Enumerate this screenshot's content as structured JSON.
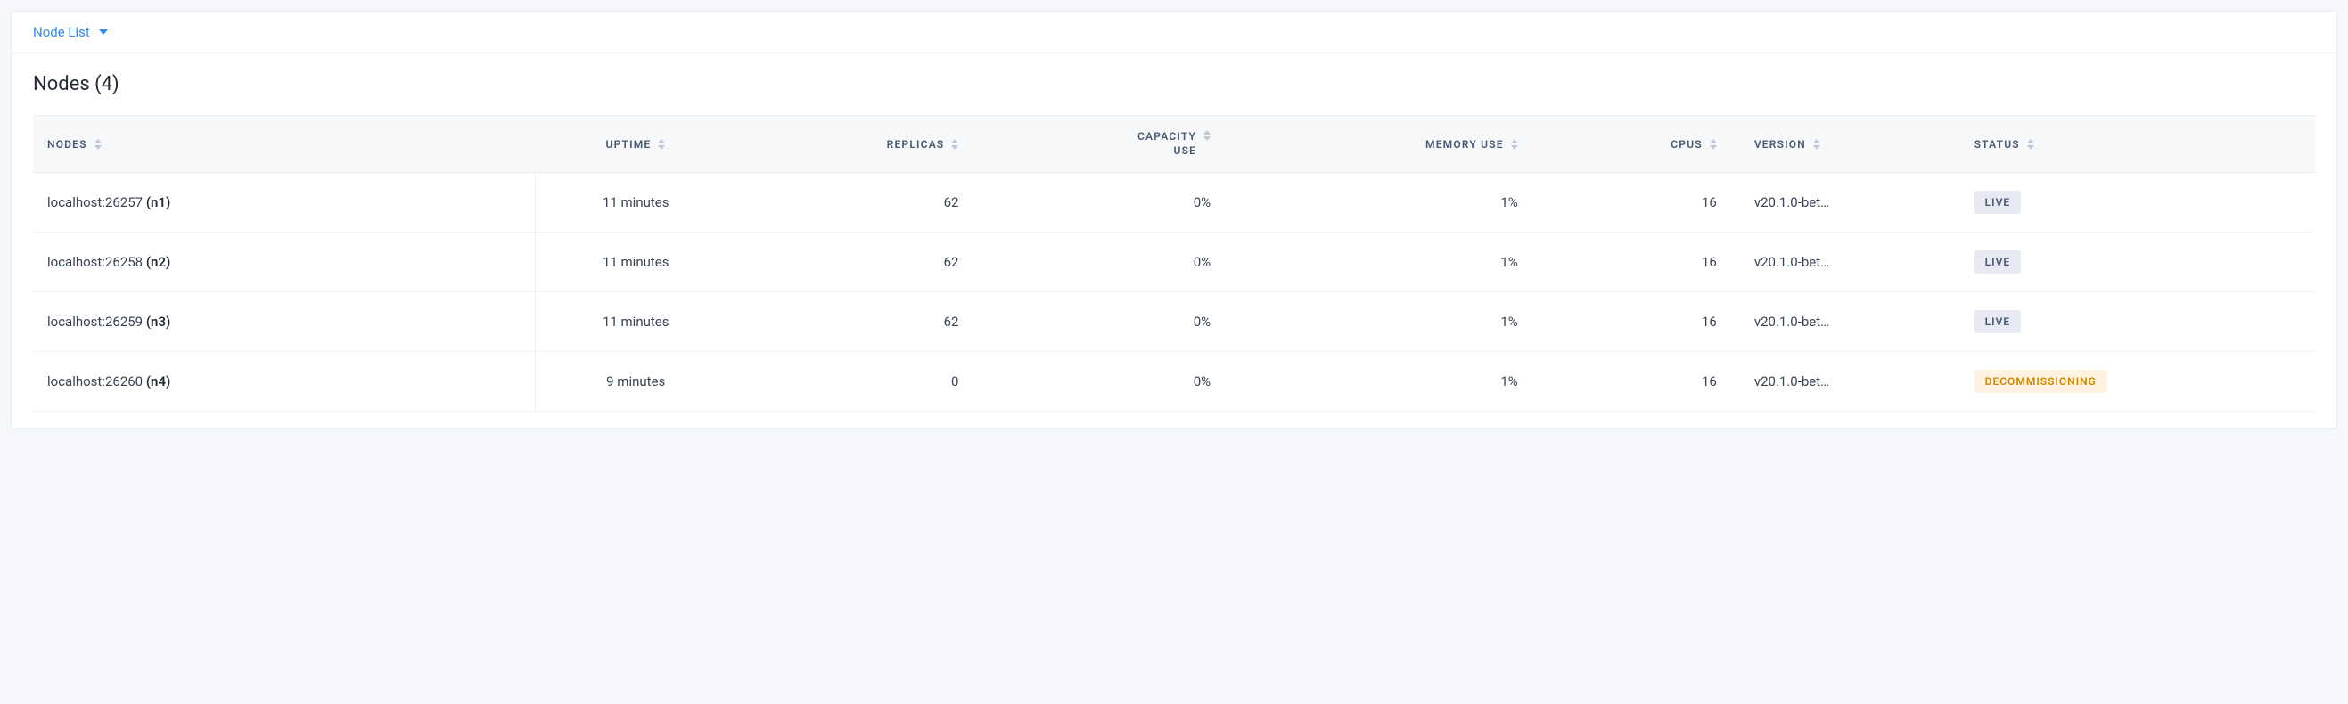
{
  "header": {
    "dropdown_label": "Node List"
  },
  "title": "Nodes (4)",
  "columns": {
    "nodes": "NODES",
    "uptime": "UPTIME",
    "replicas": "REPLICAS",
    "capacity_use": "CAPACITY USE",
    "memory_use": "MEMORY USE",
    "cpus": "CPUS",
    "version": "VERSION",
    "status": "STATUS"
  },
  "status_labels": {
    "live": "LIVE",
    "decommissioning": "DECOMMISSIONING"
  },
  "rows": [
    {
      "host": "localhost:26257",
      "id": "(n1)",
      "uptime": "11 minutes",
      "replicas": "62",
      "capacity": "0%",
      "memory": "1%",
      "cpus": "16",
      "version": "v20.1.0-bet…",
      "status": "live"
    },
    {
      "host": "localhost:26258",
      "id": "(n2)",
      "uptime": "11 minutes",
      "replicas": "62",
      "capacity": "0%",
      "memory": "1%",
      "cpus": "16",
      "version": "v20.1.0-bet…",
      "status": "live"
    },
    {
      "host": "localhost:26259",
      "id": "(n3)",
      "uptime": "11 minutes",
      "replicas": "62",
      "capacity": "0%",
      "memory": "1%",
      "cpus": "16",
      "version": "v20.1.0-bet…",
      "status": "live"
    },
    {
      "host": "localhost:26260",
      "id": "(n4)",
      "uptime": "9 minutes",
      "replicas": "0",
      "capacity": "0%",
      "memory": "1%",
      "cpus": "16",
      "version": "v20.1.0-bet…",
      "status": "decommissioning"
    }
  ],
  "colors": {
    "link": "#328af0",
    "header_bg": "#f6f8fa",
    "text": "#394455",
    "border": "#e7ecf3",
    "badge_live_bg": "#e7eaf3",
    "badge_live_fg": "#475872",
    "badge_decom_bg": "#fff2e0",
    "badge_decom_fg": "#d08700"
  }
}
